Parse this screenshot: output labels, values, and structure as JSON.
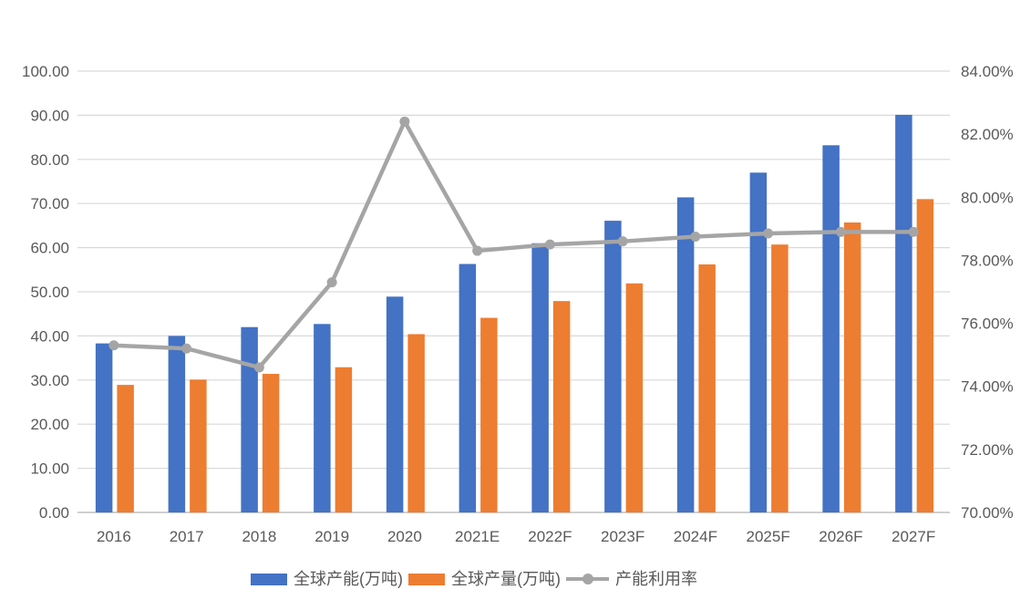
{
  "chart_data": {
    "type": "combo-bar-line",
    "title": "",
    "categories": [
      "2016",
      "2017",
      "2018",
      "2019",
      "2020",
      "2021E",
      "2022F",
      "2023F",
      "2024F",
      "2025F",
      "2026F",
      "2027F"
    ],
    "series": [
      {
        "name": "全球产能(万吨)",
        "type": "bar",
        "axis": "left",
        "color": "#4472C4",
        "values": [
          38.3,
          40.0,
          42.0,
          42.7,
          48.9,
          56.3,
          61.0,
          66.1,
          71.4,
          77.0,
          83.2,
          90.1
        ]
      },
      {
        "name": "全球产量(万吨)",
        "type": "bar",
        "axis": "left",
        "color": "#ED7D31",
        "values": [
          28.9,
          30.1,
          31.4,
          32.9,
          40.4,
          44.1,
          47.9,
          51.9,
          56.2,
          60.7,
          65.7,
          71.0
        ]
      },
      {
        "name": "产能利用率",
        "type": "line",
        "axis": "right",
        "color": "#A5A5A5",
        "values": [
          75.3,
          75.2,
          74.6,
          77.3,
          82.4,
          78.3,
          78.5,
          78.6,
          78.75,
          78.85,
          78.9,
          78.9
        ]
      }
    ],
    "left_axis": {
      "min": 0,
      "max": 100,
      "step": 10,
      "ticks": [
        "0.00",
        "10.00",
        "20.00",
        "30.00",
        "40.00",
        "50.00",
        "60.00",
        "70.00",
        "80.00",
        "90.00",
        "100.00"
      ]
    },
    "right_axis": {
      "min": 70,
      "max": 84,
      "step": 2,
      "ticks": [
        "70.00%",
        "72.00%",
        "74.00%",
        "76.00%",
        "78.00%",
        "80.00%",
        "82.00%",
        "84.00%"
      ]
    },
    "grid": true,
    "legend_position": "bottom"
  },
  "colors": {
    "grid_line": "#D9D9D9",
    "axis_line": "#BFBFBF",
    "tick_text": "#595959",
    "background": "#FFFFFF"
  }
}
